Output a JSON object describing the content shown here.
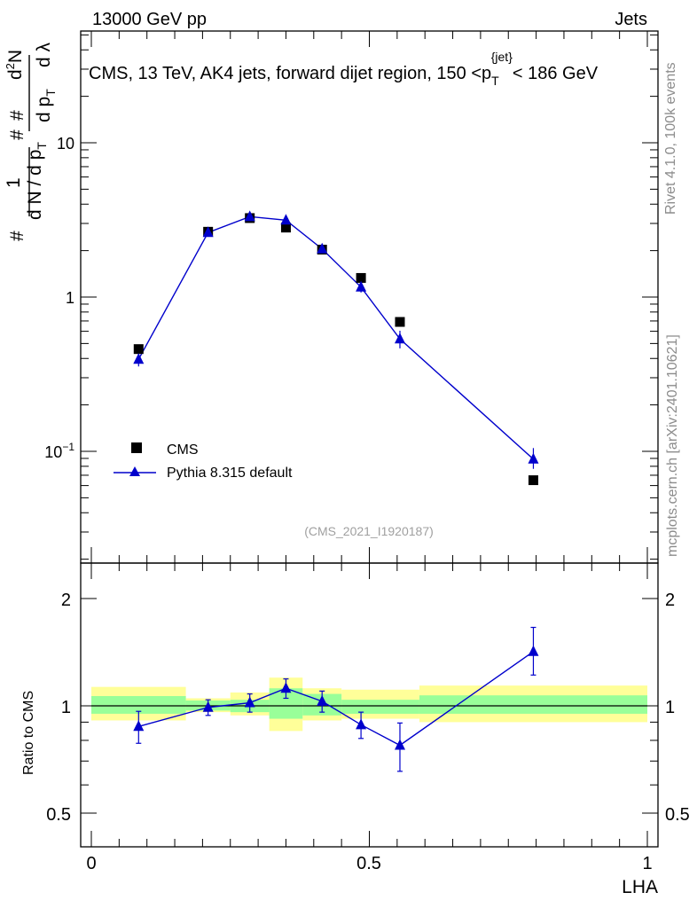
{
  "header": {
    "left": "13000 GeV pp",
    "right": "Jets"
  },
  "side": {
    "top": "Rivet 4.1.0,  100k events",
    "bottom": "mcplots.cern.ch [arXiv:2401.10621]"
  },
  "watermark": "(CMS_2021_I1920187)",
  "chart_data": [
    {
      "type": "scatter",
      "title": "CMS, 13 TeV, AK4 jets, forward dijet region, 150 <p_T^{jet}< 186 GeV",
      "ylabel": "1/(dN/dp_T) d^2N/(dp_T dλ)",
      "yscale": "log",
      "xlim": [
        -0.02,
        1.02
      ],
      "ylim": [
        0.022,
        60
      ],
      "ytick_labels": [
        "10^-1",
        "1",
        "10"
      ],
      "legend": {
        "position": "lower-left",
        "entries": [
          "CMS",
          "Pythia 8.315 default"
        ]
      },
      "series": [
        {
          "name": "CMS",
          "marker": "square",
          "color": "#000000",
          "x": [
            0.085,
            0.21,
            0.285,
            0.35,
            0.415,
            0.485,
            0.555,
            0.795
          ],
          "y": [
            0.46,
            2.65,
            3.25,
            2.82,
            2.03,
            1.33,
            0.69,
            0.065
          ]
        },
        {
          "name": "Pythia 8.315 default",
          "marker": "triangle",
          "color": "#0000cc",
          "x": [
            0.085,
            0.21,
            0.285,
            0.35,
            0.415,
            0.485,
            0.555,
            0.795
          ],
          "y": [
            0.395,
            2.62,
            3.32,
            3.15,
            2.05,
            1.16,
            0.535,
            0.089
          ],
          "err_lo": [
            0.04,
            0.1,
            0.13,
            0.13,
            0.1,
            0.09,
            0.07,
            0.012
          ],
          "err_hi": [
            0.04,
            0.1,
            0.13,
            0.13,
            0.1,
            0.09,
            0.07,
            0.016
          ]
        }
      ]
    },
    {
      "type": "scatter",
      "xlabel": "LHA",
      "ylabel": "Ratio to CMS",
      "yscale": "log",
      "xlim": [
        -0.02,
        1.02
      ],
      "ylim": [
        0.4,
        2.4
      ],
      "ytick_labels": [
        "0.5",
        "1",
        "2"
      ],
      "xtick_labels": [
        "0",
        "0.5",
        "1"
      ],
      "bands": [
        {
          "x0": 0.0,
          "x1": 0.17,
          "stat_lo": 0.95,
          "stat_hi": 1.065,
          "tot_lo": 0.91,
          "tot_hi": 1.13
        },
        {
          "x0": 0.17,
          "x1": 0.25,
          "stat_lo": 0.97,
          "stat_hi": 1.035,
          "tot_lo": 0.96,
          "tot_hi": 1.05
        },
        {
          "x0": 0.25,
          "x1": 0.32,
          "stat_lo": 0.96,
          "stat_hi": 1.04,
          "tot_lo": 0.94,
          "tot_hi": 1.09
        },
        {
          "x0": 0.32,
          "x1": 0.38,
          "stat_lo": 0.92,
          "stat_hi": 1.12,
          "tot_lo": 0.85,
          "tot_hi": 1.2
        },
        {
          "x0": 0.38,
          "x1": 0.45,
          "stat_lo": 0.94,
          "stat_hi": 1.08,
          "tot_lo": 0.91,
          "tot_hi": 1.12
        },
        {
          "x0": 0.45,
          "x1": 0.59,
          "stat_lo": 0.95,
          "stat_hi": 1.04,
          "tot_lo": 0.92,
          "tot_hi": 1.11
        },
        {
          "x0": 0.59,
          "x1": 1.0,
          "stat_lo": 0.95,
          "stat_hi": 1.07,
          "tot_lo": 0.9,
          "tot_hi": 1.14
        }
      ],
      "series": [
        {
          "name": "Pythia 8.315 default",
          "marker": "triangle",
          "color": "#0000cc",
          "x": [
            0.085,
            0.21,
            0.285,
            0.35,
            0.415,
            0.485,
            0.555,
            0.795
          ],
          "y": [
            0.875,
            0.99,
            1.02,
            1.12,
            1.03,
            0.885,
            0.775,
            1.42
          ],
          "err_lo": [
            0.09,
            0.05,
            0.06,
            0.07,
            0.07,
            0.075,
            0.12,
            0.2
          ],
          "err_hi": [
            0.09,
            0.05,
            0.06,
            0.07,
            0.07,
            0.075,
            0.12,
            0.24
          ]
        }
      ]
    }
  ],
  "colors": {
    "series_cms": "#000000",
    "series_pythia": "#0000cc",
    "band_stat": "#99ff99",
    "band_total": "#ffff99"
  }
}
